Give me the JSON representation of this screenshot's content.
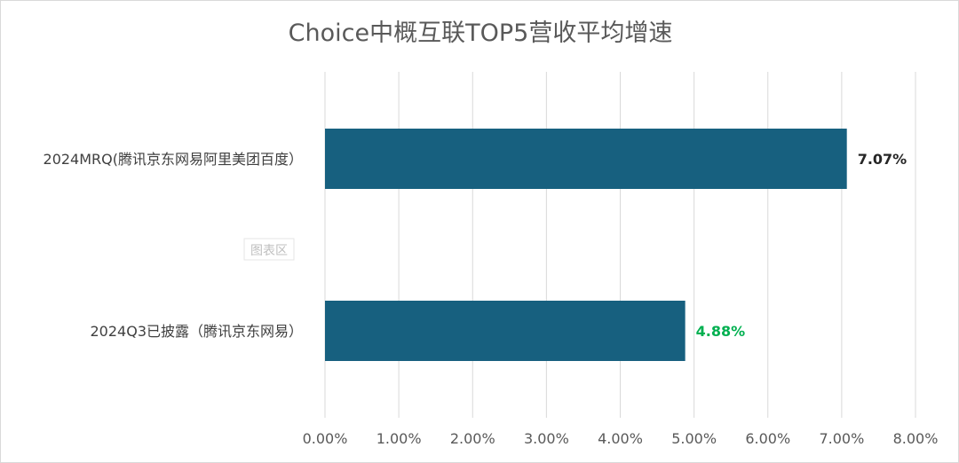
{
  "chart_data": {
    "type": "bar",
    "orientation": "horizontal",
    "title": "Choice中概互联TOP5营收平均增速",
    "categories": [
      "2024MRQ(腾讯京东网易阿里美团百度）",
      "2024Q3已披露（腾讯京东网易）"
    ],
    "values": [
      7.07,
      4.88
    ],
    "data_labels": [
      "7.07%",
      "4.88%"
    ],
    "data_label_colors": [
      "#262626",
      "#00b050"
    ],
    "bar_color": "#17607f",
    "xlim": [
      0,
      8
    ],
    "x_ticks": [
      0,
      1,
      2,
      3,
      4,
      5,
      6,
      7,
      8
    ],
    "x_tick_labels": [
      "0.00%",
      "1.00%",
      "2.00%",
      "3.00%",
      "4.00%",
      "5.00%",
      "6.00%",
      "7.00%",
      "8.00%"
    ],
    "grid": "vertical",
    "xlabel": "",
    "ylabel": ""
  },
  "overlay": {
    "watermark": "图表区"
  }
}
